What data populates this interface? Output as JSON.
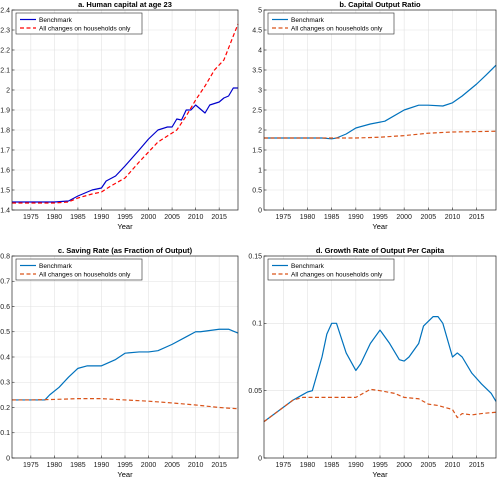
{
  "chart_data": [
    {
      "type": "line",
      "title": "a. Human capital at age 23",
      "xlabel": "Year",
      "ylabel": "",
      "xlim": [
        1971,
        2019
      ],
      "ylim": [
        1.4,
        2.4
      ],
      "xticks": [
        1975,
        1980,
        1985,
        1990,
        1995,
        2000,
        2005,
        2010,
        2015
      ],
      "yticks": [
        1.4,
        1.5,
        1.6,
        1.7,
        1.8,
        1.9,
        2,
        2.1,
        2.2,
        2.3,
        2.4
      ],
      "ytick_labels": [
        "1.4",
        "1.5",
        "1.6",
        "1.7",
        "1.8",
        "1.9",
        "2",
        "2.1",
        "2.2",
        "2.3",
        "2.4"
      ],
      "grid": true,
      "legend_position": "top-left",
      "series": [
        {
          "name": "Benchmark",
          "style": "solid",
          "color": "#0000cc",
          "x": [
            1971,
            1975,
            1980,
            1983,
            1985,
            1988,
            1990,
            1991,
            1993,
            1995,
            1998,
            2000,
            2002,
            2004,
            2005,
            2006,
            2007,
            2008,
            2009,
            2010,
            2011,
            2012,
            2013,
            2015,
            2016,
            2017,
            2018,
            2019
          ],
          "y": [
            1.44,
            1.44,
            1.44,
            1.445,
            1.47,
            1.5,
            1.51,
            1.545,
            1.57,
            1.62,
            1.7,
            1.755,
            1.8,
            1.815,
            1.815,
            1.855,
            1.85,
            1.9,
            1.9,
            1.925,
            1.905,
            1.885,
            1.925,
            1.94,
            1.96,
            1.97,
            2.01,
            2.01
          ]
        },
        {
          "name": "All changes on households only",
          "style": "dashed",
          "color": "#ff0000",
          "x": [
            1971,
            1975,
            1980,
            1983,
            1985,
            1988,
            1990,
            1992,
            1995,
            1998,
            2000,
            2002,
            2004,
            2006,
            2008,
            2010,
            2012,
            2014,
            2016,
            2018,
            2019
          ],
          "y": [
            1.435,
            1.435,
            1.435,
            1.44,
            1.46,
            1.48,
            1.49,
            1.52,
            1.56,
            1.64,
            1.69,
            1.74,
            1.77,
            1.8,
            1.87,
            1.95,
            2.02,
            2.1,
            2.15,
            2.27,
            2.33
          ]
        }
      ]
    },
    {
      "type": "line",
      "title": "b. Capital Output Ratio",
      "xlabel": "Year",
      "ylabel": "",
      "xlim": [
        1971,
        2019
      ],
      "ylim": [
        0,
        5
      ],
      "xticks": [
        1975,
        1980,
        1985,
        1990,
        1995,
        2000,
        2005,
        2010,
        2015
      ],
      "yticks": [
        0,
        0.5,
        1,
        1.5,
        2,
        2.5,
        3,
        3.5,
        4,
        4.5,
        5
      ],
      "ytick_labels": [
        "0",
        "0.5",
        "1",
        "1.5",
        "2",
        "2.5",
        "3",
        "3.5",
        "4",
        "4.5",
        "5"
      ],
      "grid": true,
      "legend_position": "top-left",
      "series": [
        {
          "name": "Benchmark",
          "style": "solid",
          "color": "#0072bd",
          "x": [
            1971,
            1975,
            1980,
            1983,
            1985,
            1986,
            1988,
            1990,
            1993,
            1996,
            2000,
            2003,
            2005,
            2008,
            2010,
            2012,
            2015,
            2017,
            2019
          ],
          "y": [
            1.8,
            1.8,
            1.8,
            1.8,
            1.78,
            1.8,
            1.9,
            2.05,
            2.15,
            2.22,
            2.5,
            2.62,
            2.62,
            2.6,
            2.68,
            2.85,
            3.15,
            3.38,
            3.62
          ]
        },
        {
          "name": "All changes on households only",
          "style": "dashed",
          "color": "#d95319",
          "x": [
            1971,
            1975,
            1980,
            1985,
            1990,
            1995,
            2000,
            2005,
            2010,
            2015,
            2019
          ],
          "y": [
            1.8,
            1.8,
            1.8,
            1.8,
            1.8,
            1.82,
            1.86,
            1.92,
            1.95,
            1.96,
            1.97
          ]
        }
      ]
    },
    {
      "type": "line",
      "title": "c. Saving Rate (as Fraction of Output)",
      "xlabel": "Year",
      "ylabel": "",
      "xlim": [
        1971,
        2019
      ],
      "ylim": [
        0,
        0.8
      ],
      "xticks": [
        1975,
        1980,
        1985,
        1990,
        1995,
        2000,
        2005,
        2010,
        2015
      ],
      "yticks": [
        0,
        0.1,
        0.2,
        0.3,
        0.4,
        0.5,
        0.6,
        0.7,
        0.8
      ],
      "ytick_labels": [
        "0",
        "0.1",
        "0.2",
        "0.3",
        "0.4",
        "0.5",
        "0.6",
        "0.7",
        "0.8"
      ],
      "grid": true,
      "legend_position": "top-left",
      "series": [
        {
          "name": "Benchmark",
          "style": "solid",
          "color": "#0072bd",
          "x": [
            1971,
            1975,
            1978,
            1979,
            1981,
            1983,
            1985,
            1987,
            1990,
            1993,
            1995,
            1998,
            2000,
            2002,
            2005,
            2008,
            2010,
            2011,
            2013,
            2015,
            2017,
            2019
          ],
          "y": [
            0.23,
            0.23,
            0.23,
            0.25,
            0.28,
            0.32,
            0.355,
            0.365,
            0.365,
            0.39,
            0.415,
            0.42,
            0.42,
            0.425,
            0.45,
            0.48,
            0.5,
            0.5,
            0.505,
            0.51,
            0.51,
            0.495
          ]
        },
        {
          "name": "All changes on households only",
          "style": "dashed",
          "color": "#d95319",
          "x": [
            1971,
            1975,
            1980,
            1985,
            1990,
            1995,
            2000,
            2005,
            2010,
            2015,
            2019
          ],
          "y": [
            0.23,
            0.23,
            0.232,
            0.235,
            0.235,
            0.23,
            0.225,
            0.218,
            0.21,
            0.2,
            0.195
          ]
        }
      ]
    },
    {
      "type": "line",
      "title": "d. Growth Rate of Output Per Capita",
      "xlabel": "Year",
      "ylabel": "",
      "xlim": [
        1971,
        2019
      ],
      "ylim": [
        0,
        0.15
      ],
      "xticks": [
        1975,
        1980,
        1985,
        1990,
        1995,
        2000,
        2005,
        2010,
        2015
      ],
      "yticks": [
        0,
        0.05,
        0.1,
        0.15
      ],
      "ytick_labels": [
        "0",
        "0.05",
        "0.1",
        "0.15"
      ],
      "grid": true,
      "legend_position": "top-left",
      "series": [
        {
          "name": "Benchmark",
          "style": "solid",
          "color": "#0072bd",
          "x": [
            1971,
            1974,
            1977,
            1979,
            1980,
            1981,
            1983,
            1984,
            1985,
            1986,
            1988,
            1990,
            1991,
            1993,
            1995,
            1997,
            1999,
            2000,
            2001,
            2003,
            2004,
            2006,
            2007,
            2008,
            2010,
            2011,
            2012,
            2014,
            2016,
            2018,
            2019
          ],
          "y": [
            0.027,
            0.035,
            0.043,
            0.047,
            0.049,
            0.05,
            0.075,
            0.092,
            0.1,
            0.1,
            0.078,
            0.065,
            0.07,
            0.085,
            0.095,
            0.085,
            0.073,
            0.072,
            0.075,
            0.085,
            0.098,
            0.105,
            0.105,
            0.1,
            0.075,
            0.078,
            0.075,
            0.063,
            0.055,
            0.048,
            0.042
          ]
        },
        {
          "name": "All changes on households only",
          "style": "dashed",
          "color": "#d95319",
          "x": [
            1971,
            1974,
            1977,
            1979,
            1980,
            1985,
            1988,
            1990,
            1993,
            1995,
            1998,
            2000,
            2003,
            2005,
            2007,
            2009,
            2010,
            2011,
            2012,
            2014,
            2016,
            2019
          ],
          "y": [
            0.027,
            0.035,
            0.043,
            0.045,
            0.045,
            0.045,
            0.045,
            0.045,
            0.051,
            0.05,
            0.048,
            0.045,
            0.044,
            0.04,
            0.039,
            0.037,
            0.036,
            0.03,
            0.033,
            0.032,
            0.033,
            0.034
          ]
        }
      ]
    }
  ]
}
